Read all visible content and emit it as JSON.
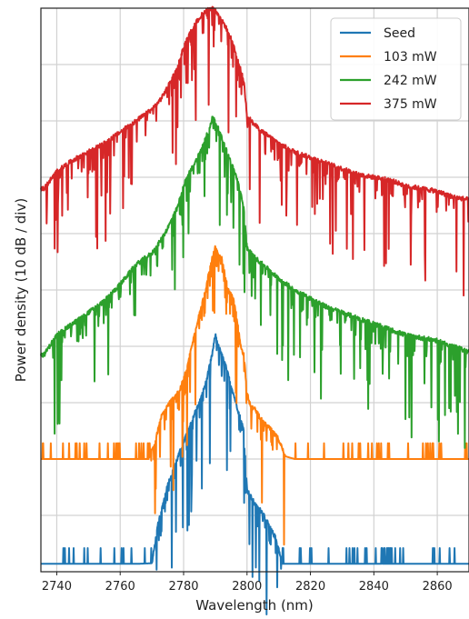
{
  "chart_data": {
    "type": "line",
    "title": "",
    "xlabel": "Wavelength (nm)",
    "ylabel": "Power density (10 dB / div)",
    "xlim": [
      2735,
      2870
    ],
    "ylim": [
      0,
      10
    ],
    "x_ticks": [
      "2740",
      "2760",
      "2780",
      "2800",
      "2820",
      "2840",
      "2860"
    ],
    "y_ticks_labeled": false,
    "grid": true,
    "legend_position": "top-right",
    "series": [
      {
        "name": "Seed",
        "color": "#1f77b4",
        "points": [
          [
            2736,
            0.14
          ],
          [
            2745,
            0.14
          ],
          [
            2755,
            0.14
          ],
          [
            2765,
            0.14
          ],
          [
            2770,
            0.15
          ],
          [
            2772,
            0.85
          ],
          [
            2775,
            1.55
          ],
          [
            2778,
            2.0
          ],
          [
            2781,
            2.45
          ],
          [
            2783,
            2.75
          ],
          [
            2785,
            3.0
          ],
          [
            2787,
            3.35
          ],
          [
            2789,
            3.85
          ],
          [
            2790,
            4.2
          ],
          [
            2791,
            4.0
          ],
          [
            2793,
            3.7
          ],
          [
            2795,
            3.3
          ],
          [
            2797,
            2.9
          ],
          [
            2799,
            2.5
          ],
          [
            2800,
            1.45
          ],
          [
            2801,
            1.35
          ],
          [
            2803,
            1.15
          ],
          [
            2805,
            1.05
          ],
          [
            2807,
            0.8
          ],
          [
            2809,
            0.6
          ],
          [
            2810,
            0.4
          ],
          [
            2811,
            0.14
          ],
          [
            2820,
            0.14
          ],
          [
            2830,
            0.14
          ],
          [
            2840,
            0.14
          ],
          [
            2850,
            0.14
          ],
          [
            2860,
            0.14
          ],
          [
            2870,
            0.14
          ]
        ]
      },
      {
        "name": "103 mW",
        "color": "#ff7f0e",
        "points": [
          [
            2736,
            2.0
          ],
          [
            2745,
            2.0
          ],
          [
            2755,
            2.0
          ],
          [
            2765,
            2.0
          ],
          [
            2769,
            2.0
          ],
          [
            2771,
            2.3
          ],
          [
            2773,
            2.75
          ],
          [
            2775,
            2.95
          ],
          [
            2777,
            3.1
          ],
          [
            2779,
            3.25
          ],
          [
            2781,
            3.6
          ],
          [
            2783,
            4.1
          ],
          [
            2785,
            4.6
          ],
          [
            2787,
            5.0
          ],
          [
            2788,
            5.3
          ],
          [
            2789,
            5.55
          ],
          [
            2790,
            5.75
          ],
          [
            2791,
            5.6
          ],
          [
            2792,
            5.55
          ],
          [
            2794,
            5.0
          ],
          [
            2796,
            4.8
          ],
          [
            2798,
            4.0
          ],
          [
            2799,
            3.85
          ],
          [
            2800,
            3.2
          ],
          [
            2801,
            2.95
          ],
          [
            2803,
            2.85
          ],
          [
            2805,
            2.65
          ],
          [
            2807,
            2.55
          ],
          [
            2810,
            2.35
          ],
          [
            2812,
            2.05
          ],
          [
            2815,
            2.0
          ],
          [
            2825,
            2.0
          ],
          [
            2835,
            2.0
          ],
          [
            2845,
            2.0
          ],
          [
            2855,
            2.0
          ],
          [
            2870,
            2.0
          ]
        ]
      },
      {
        "name": "242 mW",
        "color": "#2ca02c",
        "points": [
          [
            2736,
            3.85
          ],
          [
            2740,
            4.2
          ],
          [
            2745,
            4.4
          ],
          [
            2750,
            4.6
          ],
          [
            2755,
            4.8
          ],
          [
            2760,
            5.1
          ],
          [
            2765,
            5.45
          ],
          [
            2770,
            5.65
          ],
          [
            2773,
            5.9
          ],
          [
            2775,
            6.1
          ],
          [
            2778,
            6.45
          ],
          [
            2780,
            6.85
          ],
          [
            2782,
            7.1
          ],
          [
            2784,
            7.3
          ],
          [
            2786,
            7.55
          ],
          [
            2788,
            7.85
          ],
          [
            2789,
            8.05
          ],
          [
            2790,
            8.0
          ],
          [
            2791,
            7.85
          ],
          [
            2793,
            7.55
          ],
          [
            2795,
            7.25
          ],
          [
            2797,
            6.95
          ],
          [
            2799,
            6.45
          ],
          [
            2800,
            5.75
          ],
          [
            2802,
            5.6
          ],
          [
            2805,
            5.45
          ],
          [
            2810,
            5.2
          ],
          [
            2815,
            5.0
          ],
          [
            2820,
            4.85
          ],
          [
            2825,
            4.7
          ],
          [
            2830,
            4.6
          ],
          [
            2835,
            4.5
          ],
          [
            2840,
            4.4
          ],
          [
            2845,
            4.3
          ],
          [
            2850,
            4.2
          ],
          [
            2855,
            4.15
          ],
          [
            2860,
            4.1
          ],
          [
            2865,
            4.0
          ],
          [
            2870,
            3.9
          ]
        ]
      },
      {
        "name": "375 mW",
        "color": "#d62728",
        "points": [
          [
            2736,
            6.8
          ],
          [
            2740,
            7.1
          ],
          [
            2745,
            7.3
          ],
          [
            2750,
            7.45
          ],
          [
            2755,
            7.6
          ],
          [
            2760,
            7.8
          ],
          [
            2765,
            8.0
          ],
          [
            2770,
            8.2
          ],
          [
            2773,
            8.4
          ],
          [
            2775,
            8.6
          ],
          [
            2778,
            8.95
          ],
          [
            2780,
            9.3
          ],
          [
            2782,
            9.55
          ],
          [
            2784,
            9.75
          ],
          [
            2786,
            9.9
          ],
          [
            2788,
            10.0
          ],
          [
            2789,
            10.0
          ],
          [
            2790,
            9.95
          ],
          [
            2791,
            9.85
          ],
          [
            2793,
            9.7
          ],
          [
            2795,
            9.45
          ],
          [
            2797,
            9.1
          ],
          [
            2799,
            8.7
          ],
          [
            2800,
            8.1
          ],
          [
            2802,
            7.95
          ],
          [
            2805,
            7.8
          ],
          [
            2810,
            7.6
          ],
          [
            2815,
            7.45
          ],
          [
            2820,
            7.35
          ],
          [
            2825,
            7.25
          ],
          [
            2830,
            7.15
          ],
          [
            2835,
            7.05
          ],
          [
            2840,
            7.0
          ],
          [
            2845,
            6.95
          ],
          [
            2850,
            6.85
          ],
          [
            2855,
            6.8
          ],
          [
            2860,
            6.75
          ],
          [
            2865,
            6.65
          ],
          [
            2870,
            6.6
          ]
        ]
      }
    ]
  }
}
